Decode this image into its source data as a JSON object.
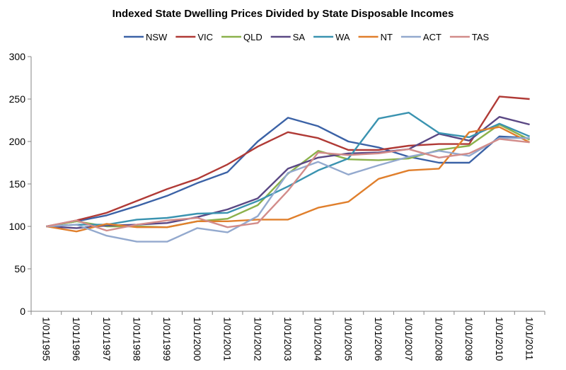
{
  "chart_data": {
    "type": "line",
    "title": "Indexed State Dwelling Prices Divided by State Disposable Incomes",
    "xlabel": "",
    "ylabel": "",
    "ylim": [
      0,
      300
    ],
    "yticks": [
      "0",
      "50",
      "100",
      "150",
      "200",
      "250",
      "300"
    ],
    "ytick_values": [
      0,
      50,
      100,
      150,
      200,
      250,
      300
    ],
    "categories": [
      "1/01/1995",
      "1/01/1996",
      "1/01/1997",
      "1/01/1998",
      "1/01/1999",
      "1/01/2000",
      "1/01/2001",
      "1/01/2002",
      "1/01/2003",
      "1/01/2004",
      "1/01/2005",
      "1/01/2006",
      "1/01/2007",
      "1/01/2008",
      "1/01/2009",
      "1/01/2010",
      "1/01/2011"
    ],
    "grid": false,
    "legend_position": "top",
    "series": [
      {
        "name": "NSW",
        "color": "#3B62A6",
        "values": [
          100,
          106,
          113,
          124,
          136,
          151,
          164,
          200,
          228,
          218,
          200,
          193,
          182,
          175,
          175,
          206,
          204
        ]
      },
      {
        "name": "VIC",
        "color": "#B03A36",
        "values": [
          100,
          107,
          116,
          130,
          144,
          156,
          173,
          194,
          211,
          204,
          190,
          190,
          195,
          197,
          197,
          253,
          250
        ]
      },
      {
        "name": "QLD",
        "color": "#8BB14B",
        "values": [
          100,
          106,
          100,
          100,
          99,
          106,
          109,
          125,
          162,
          189,
          179,
          178,
          180,
          190,
          195,
          220,
          202
        ]
      },
      {
        "name": "SA",
        "color": "#5A4884",
        "values": [
          100,
          98,
          101,
          102,
          104,
          111,
          120,
          133,
          168,
          181,
          186,
          187,
          191,
          209,
          201,
          229,
          220
        ]
      },
      {
        "name": "WA",
        "color": "#3A93B0",
        "values": [
          100,
          102,
          102,
          108,
          110,
          115,
          116,
          130,
          147,
          166,
          180,
          227,
          234,
          210,
          205,
          221,
          206
        ]
      },
      {
        "name": "NT",
        "color": "#E07F2C",
        "values": [
          100,
          94,
          103,
          99,
          99,
          106,
          106,
          108,
          108,
          122,
          129,
          156,
          166,
          168,
          211,
          217,
          199
        ]
      },
      {
        "name": "ACT",
        "color": "#93A9CE",
        "values": [
          100,
          102,
          89,
          82,
          82,
          98,
          93,
          112,
          163,
          176,
          161,
          172,
          182,
          189,
          183,
          204,
          204
        ]
      },
      {
        "name": "TAS",
        "color": "#D28C8A",
        "values": [
          100,
          107,
          95,
          102,
          107,
          110,
          99,
          104,
          142,
          187,
          184,
          186,
          191,
          181,
          186,
          203,
          199
        ]
      }
    ]
  }
}
